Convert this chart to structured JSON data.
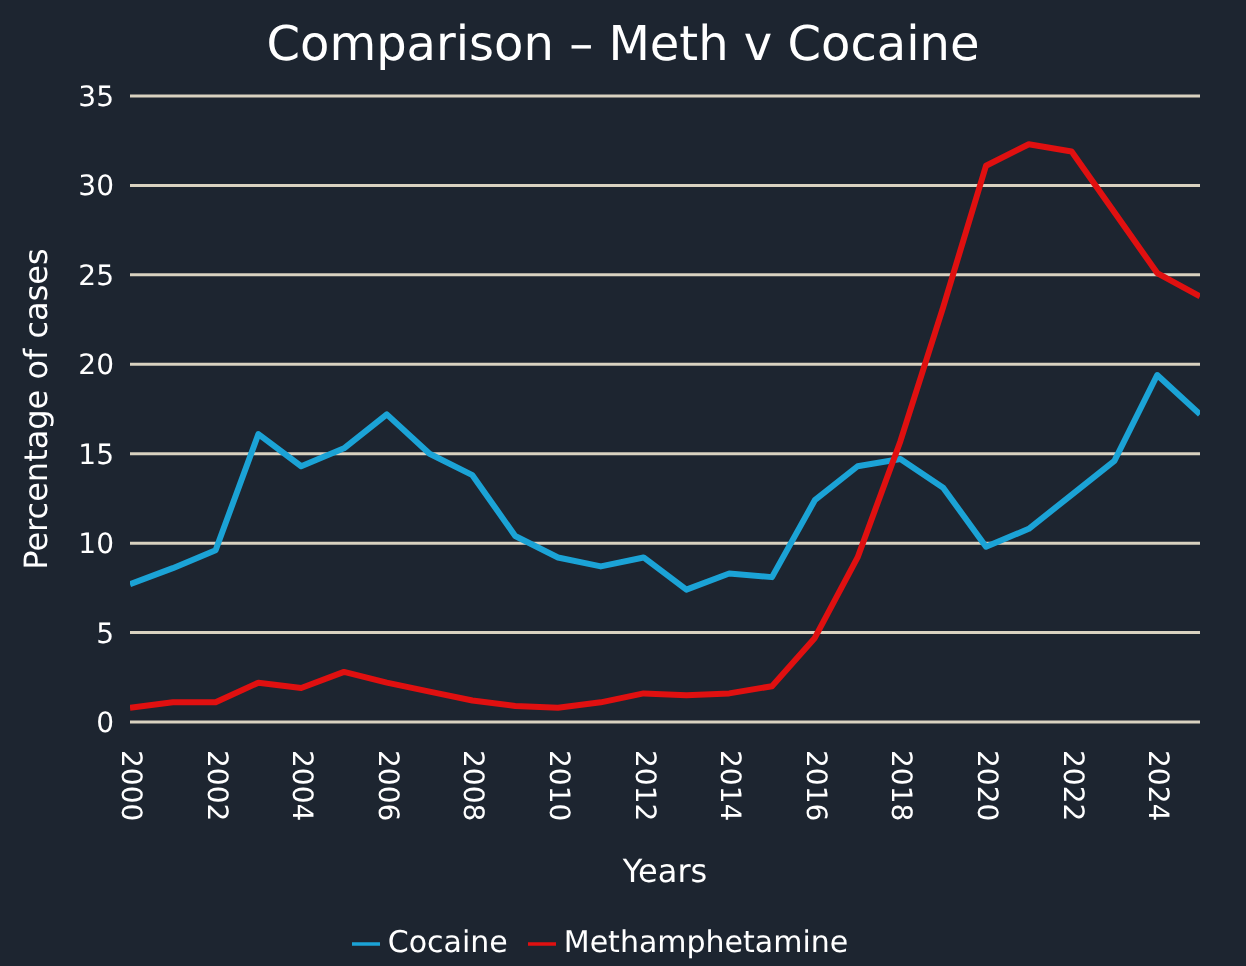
{
  "chart_data": {
    "type": "line",
    "title": "Comparison – Meth v Cocaine",
    "xlabel": "Years",
    "ylabel": "Percentage of cases",
    "x": [
      2000,
      2001,
      2002,
      2003,
      2004,
      2005,
      2006,
      2007,
      2008,
      2009,
      2010,
      2011,
      2012,
      2013,
      2014,
      2015,
      2016,
      2017,
      2018,
      2019,
      2020,
      2021,
      2022,
      2023,
      2024,
      2025
    ],
    "series": [
      {
        "name": "Cocaine",
        "color": "#1ba3d6",
        "values": [
          7.7,
          8.6,
          9.6,
          16.1,
          14.3,
          15.3,
          17.2,
          15.0,
          13.8,
          10.4,
          9.2,
          8.7,
          9.2,
          7.4,
          8.3,
          8.1,
          12.4,
          14.3,
          14.7,
          13.1,
          9.8,
          10.8,
          12.7,
          14.6,
          19.4,
          17.2
        ]
      },
      {
        "name": "Methamphetamine",
        "color": "#e01010",
        "values": [
          0.8,
          1.1,
          1.1,
          2.2,
          1.9,
          2.8,
          2.2,
          1.7,
          1.2,
          0.9,
          0.8,
          1.1,
          1.6,
          1.5,
          1.6,
          2.0,
          4.7,
          9.2,
          15.7,
          23.2,
          31.1,
          32.3,
          31.9,
          28.5,
          25.1,
          23.8
        ]
      }
    ],
    "xlim": [
      2000,
      2025
    ],
    "xticks": [
      2000,
      2002,
      2004,
      2006,
      2008,
      2010,
      2012,
      2014,
      2016,
      2018,
      2020,
      2022,
      2024
    ],
    "ylim": [
      0,
      35
    ],
    "yticks": [
      0,
      5,
      10,
      15,
      20,
      25,
      30,
      35
    ],
    "grid": "y",
    "legend": "bottom",
    "marker": "none",
    "line_style": "solid"
  }
}
